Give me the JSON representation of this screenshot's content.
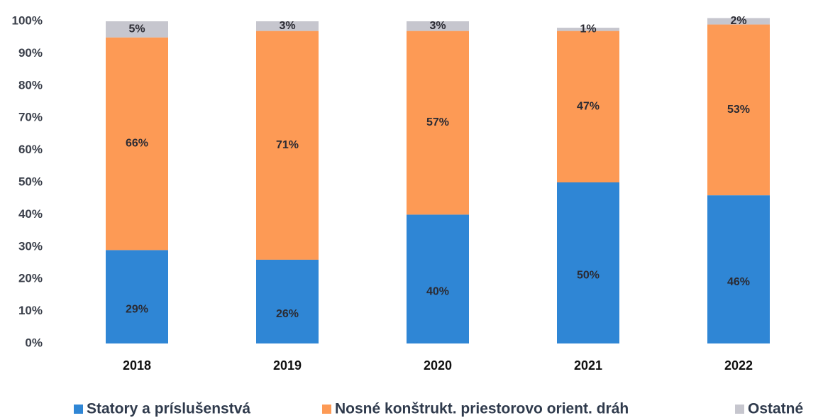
{
  "chart_data": {
    "type": "stacked_bar",
    "categories": [
      "2018",
      "2019",
      "2020",
      "2021",
      "2022"
    ],
    "series": [
      {
        "name": "Statory a príslušenstvá",
        "color": "#2f86d5",
        "values": [
          29,
          26,
          40,
          50,
          46
        ],
        "value_labels": [
          "29%",
          "26%",
          "40%",
          "50%",
          "46%"
        ]
      },
      {
        "name": "Nosné konštrukt. priestorovo orient. dráh",
        "color": "#fd9a55",
        "values": [
          66,
          71,
          57,
          47,
          53
        ],
        "value_labels": [
          "66%",
          "71%",
          "57%",
          "47%",
          "53%"
        ]
      },
      {
        "name": "Ostatné",
        "color": "#c6c6ce",
        "values": [
          5,
          3,
          3,
          1,
          2
        ],
        "value_labels": [
          "5%",
          "3%",
          "3%",
          "1%",
          "2%"
        ]
      }
    ],
    "ylim": [
      0,
      100
    ],
    "yticks": [
      {
        "value": 0,
        "label": "0%"
      },
      {
        "value": 10,
        "label": "10%"
      },
      {
        "value": 20,
        "label": "20%"
      },
      {
        "value": 30,
        "label": "30%"
      },
      {
        "value": 40,
        "label": "40%"
      },
      {
        "value": 50,
        "label": "50%"
      },
      {
        "value": 60,
        "label": "60%"
      },
      {
        "value": 70,
        "label": "70%"
      },
      {
        "value": 80,
        "label": "80%"
      },
      {
        "value": 90,
        "label": "90%"
      },
      {
        "value": 100,
        "label": "100%"
      }
    ],
    "grid": false,
    "legend": "bottom"
  }
}
